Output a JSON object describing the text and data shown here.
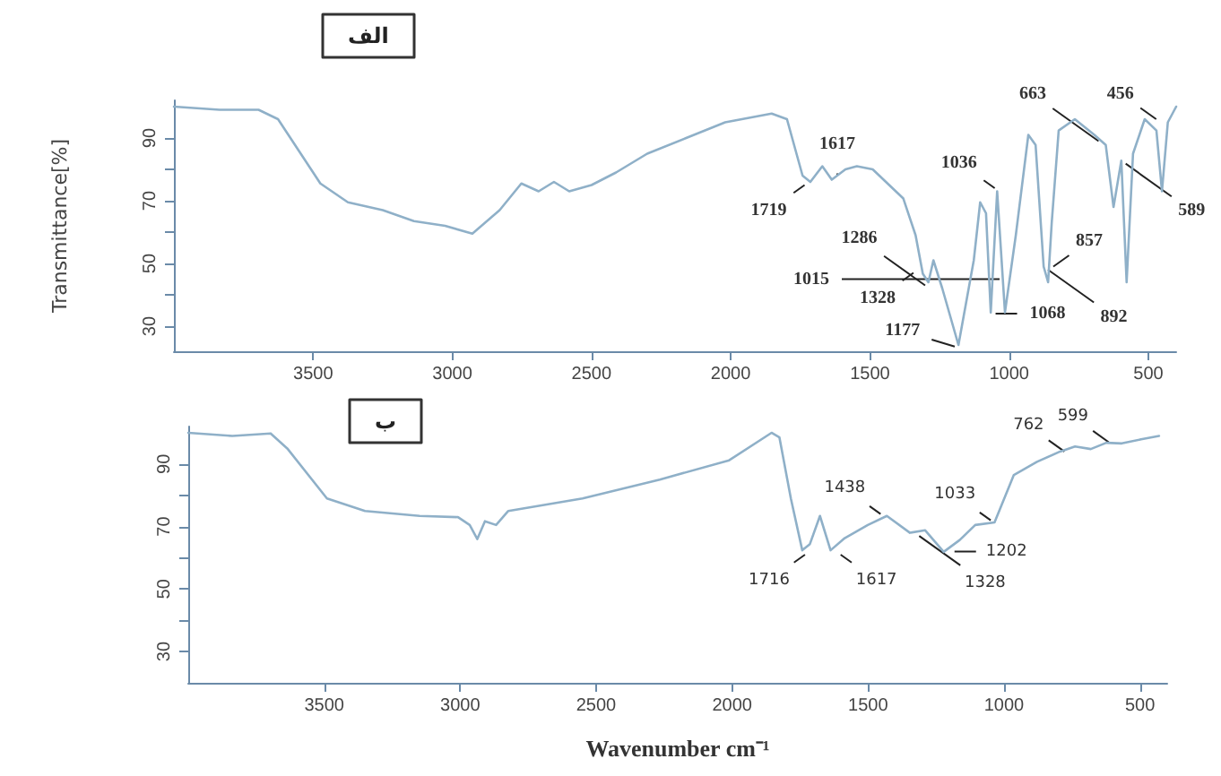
{
  "chart_data": [
    {
      "type": "line",
      "title": "الف",
      "ylabel": "Transmittance[%]",
      "xlim": [
        4000,
        400
      ],
      "xticks": [
        3500,
        3000,
        2500,
        2000,
        1500,
        1000,
        500
      ],
      "ylim": [
        22,
        102
      ],
      "yticks": [
        30,
        {
          "value": 40,
          "label": null
        },
        50,
        {
          "value": 60,
          "label": null
        },
        70,
        {
          "value": 80,
          "label": null
        },
        90
      ],
      "grid": false,
      "marker": "none",
      "line_style": "solid",
      "series": [
        {
          "color": "#8fb0c8",
          "x": [
            4000,
            3836,
            3696,
            3626,
            3474,
            3375,
            3250,
            3138,
            3026,
            2928,
            2830,
            2752,
            2690,
            2635,
            2580,
            2500,
            2412,
            2300,
            2160,
            2020,
            1853,
            1798,
            1742,
            1714,
            1671,
            1637,
            1588,
            1547,
            1490,
            1380,
            1336,
            1310,
            1290,
            1272,
            1240,
            1182,
            1127,
            1104,
            1083,
            1066,
            1043,
            1015,
            976,
            931,
            905,
            876,
            860,
            847,
            822,
            764,
            694,
            653,
            625,
            597,
            578,
            555,
            513,
            471,
            451,
            430,
            400
          ],
          "values": [
            100,
            99,
            99,
            96,
            75.5,
            69.5,
            67,
            63.5,
            62,
            59.5,
            67,
            75.5,
            73,
            76,
            73,
            75,
            79,
            85,
            90,
            95,
            97.8,
            96,
            78,
            76,
            81,
            76.7,
            80,
            81,
            80,
            70.7,
            59,
            46.7,
            44,
            51,
            42,
            24,
            51,
            69.5,
            66,
            34.4,
            73,
            34.4,
            59,
            91,
            87.8,
            49,
            44,
            63,
            92.4,
            96,
            91,
            87.8,
            68,
            82.8,
            44,
            85,
            96,
            92.4,
            73,
            95,
            100
          ]
        }
      ],
      "annotations": [
        {
          "text": "1719",
          "x": 1719,
          "y": 76
        },
        {
          "text": "1617",
          "x": 1617,
          "y": 77
        },
        {
          "text": "1328",
          "x": 1328,
          "y": 48
        },
        {
          "text": "1286",
          "x": 1286,
          "y": 42
        },
        {
          "text": "1177",
          "x": 1177,
          "y": 23
        },
        {
          "text": "1036",
          "x": 1036,
          "y": 73
        },
        {
          "text": "1068",
          "x": 1068,
          "y": 34
        },
        {
          "text": "1015",
          "x": 1015,
          "y": 45
        },
        {
          "text": "857",
          "x": 857,
          "y": 48
        },
        {
          "text": "892",
          "x": 876,
          "y": 49
        },
        {
          "text": "663",
          "x": 663,
          "y": 88
        },
        {
          "text": "589",
          "x": 597,
          "y": 82.8
        },
        {
          "text": "456",
          "x": 456,
          "y": 95
        }
      ]
    },
    {
      "type": "line",
      "title": "ب",
      "xlabel": "Wavenumber cm⁻¹",
      "xlim": [
        4000,
        400
      ],
      "xticks": [
        3500,
        3000,
        2500,
        2000,
        1500,
        1000,
        500
      ],
      "ylim": [
        20,
        102
      ],
      "yticks": [
        30,
        {
          "value": 40,
          "label": null
        },
        50,
        {
          "value": 60,
          "label": null
        },
        70,
        {
          "value": 80,
          "label": null
        },
        90
      ],
      "grid": false,
      "marker": "none",
      "line_style": "solid",
      "series": [
        {
          "color": "#8fb0c8",
          "x": [
            4000,
            3838,
            3697,
            3636,
            3490,
            3350,
            3149,
            3008,
            2965,
            2937,
            2909,
            2868,
            2823,
            2550,
            2266,
            2011,
            1855,
            1826,
            1784,
            1742,
            1714,
            1677,
            1638,
            1586,
            1501,
            1431,
            1346,
            1290,
            1222,
            1163,
            1106,
            1035,
            964,
            879,
            794,
            739,
            681,
            624,
            567,
            496,
            430
          ],
          "values": [
            100,
            99,
            99.8,
            95,
            79,
            75,
            73.4,
            73,
            70.5,
            66,
            71.7,
            70.5,
            75,
            79,
            85,
            91.2,
            100,
            98.5,
            79,
            62.4,
            64.4,
            73.4,
            62.4,
            66.3,
            70.5,
            73.4,
            68,
            68.8,
            61.9,
            65.7,
            70.5,
            71.3,
            86.5,
            90.7,
            94,
            95.6,
            94.8,
            96.8,
            96.6,
            97.9,
            99
          ]
        }
      ],
      "annotations": [
        {
          "text": "1716",
          "x": 1716,
          "y": 62
        },
        {
          "text": "1617",
          "x": 1617,
          "y": 62
        },
        {
          "text": "1438",
          "x": 1438,
          "y": 73
        },
        {
          "text": "1328",
          "x": 1328,
          "y": 68
        },
        {
          "text": "1202",
          "x": 1202,
          "y": 62
        },
        {
          "text": "1033",
          "x": 1033,
          "y": 71
        },
        {
          "text": "762",
          "x": 762,
          "y": 93
        },
        {
          "text": "599",
          "x": 599,
          "y": 96
        }
      ]
    }
  ]
}
